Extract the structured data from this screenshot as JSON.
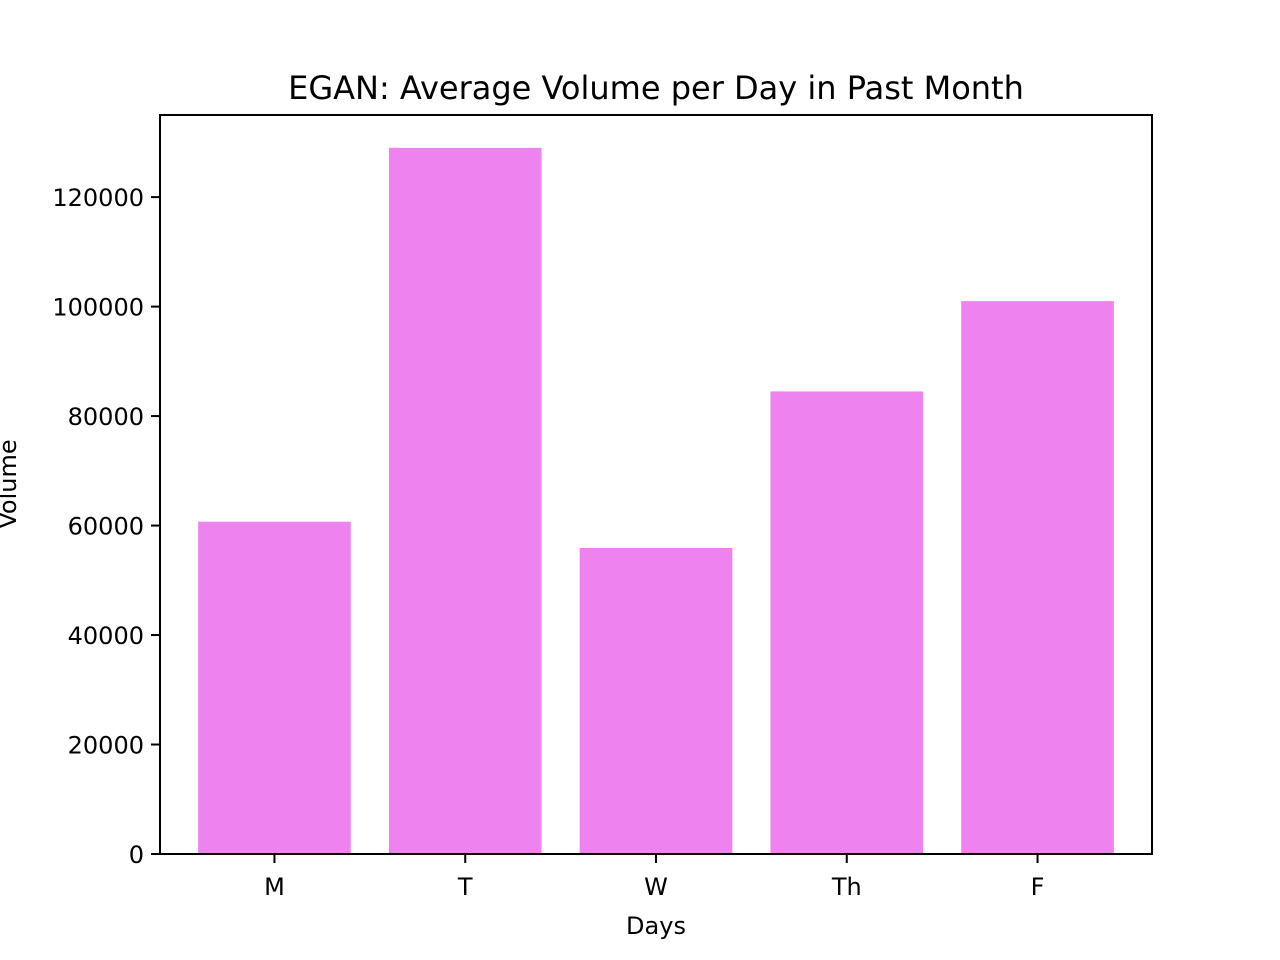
{
  "chart_data": {
    "type": "bar",
    "title": "EGAN: Average Volume per Day in Past Month",
    "xlabel": "Days",
    "ylabel": "Volume",
    "categories": [
      "M",
      "T",
      "W",
      "Th",
      "F"
    ],
    "values": [
      60700,
      129000,
      55900,
      84500,
      101000
    ],
    "ylim": [
      0,
      135000
    ],
    "yticks": [
      0,
      20000,
      40000,
      60000,
      80000,
      100000,
      120000
    ],
    "ytick_labels": [
      "0",
      "20000",
      "40000",
      "60000",
      "80000",
      "100000",
      "120000"
    ],
    "bar_color": "#ee82ee",
    "grid": false,
    "legend": false
  }
}
